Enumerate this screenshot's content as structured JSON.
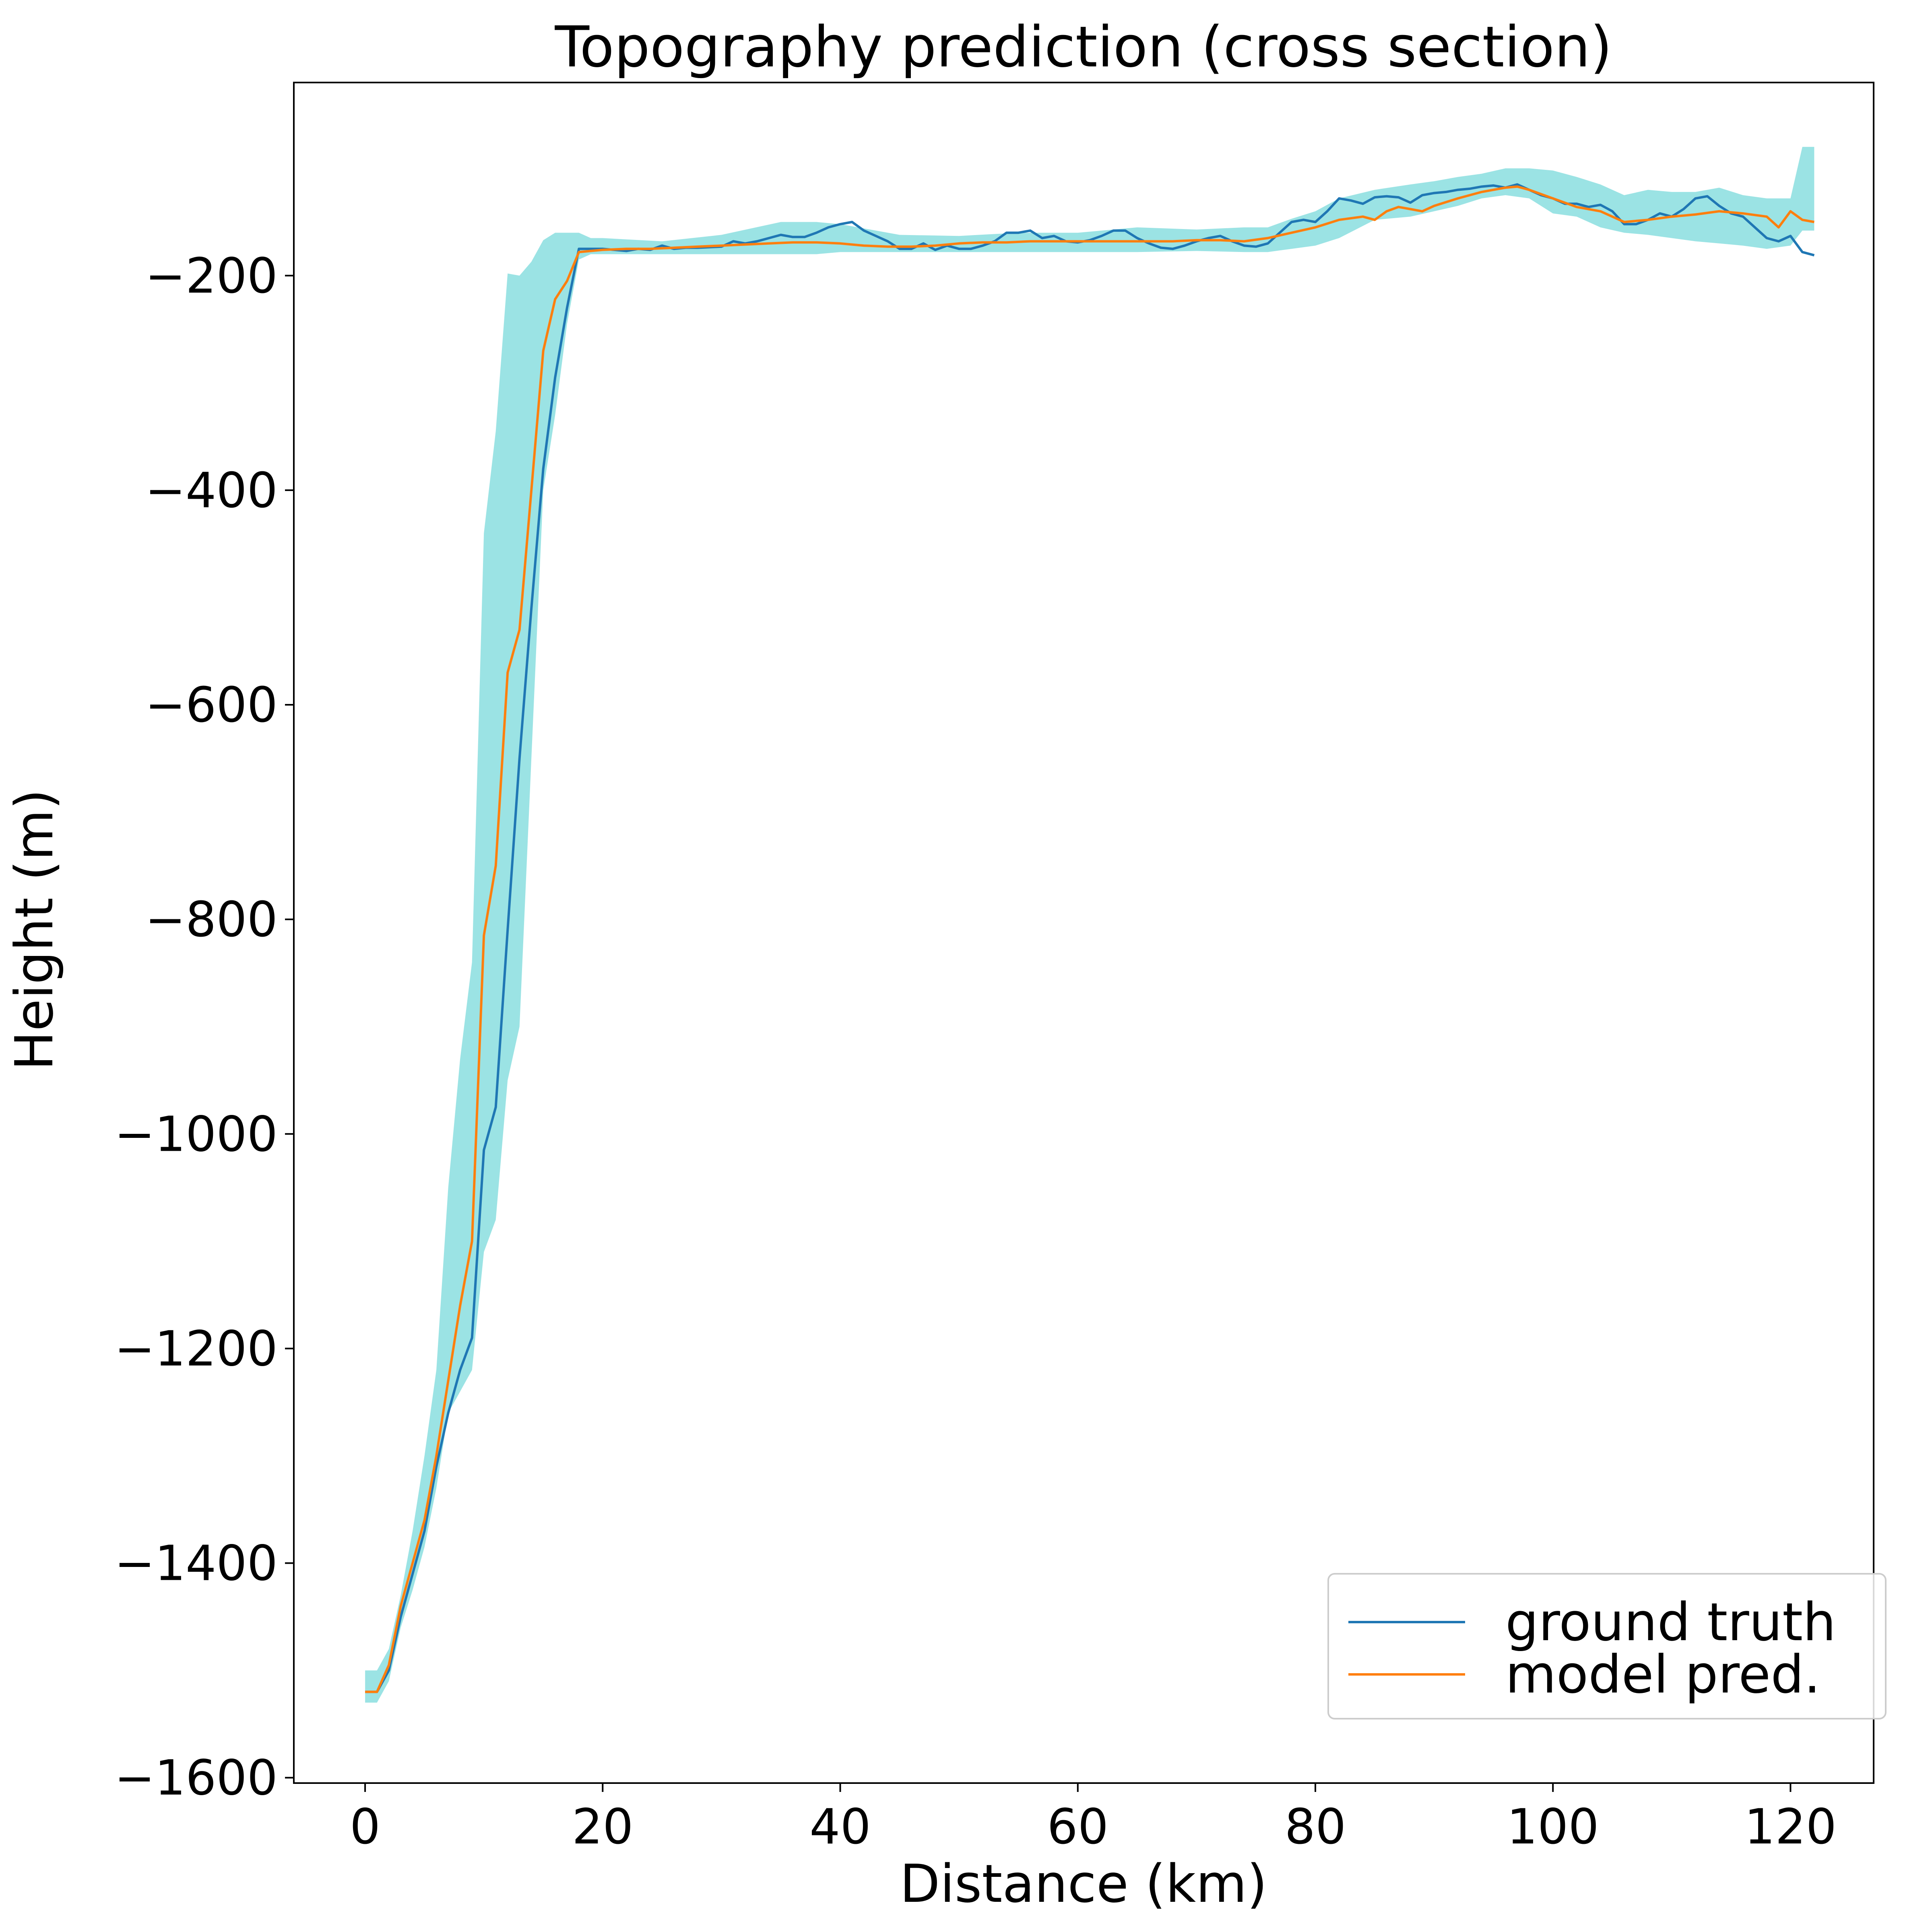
{
  "chart_data": {
    "type": "line",
    "title": "Topography prediction  (cross section)",
    "xlabel": "Distance (km)",
    "ylabel": "Height (m)",
    "xlim": [
      -6,
      127
    ],
    "ylim": [
      -1605,
      -20
    ],
    "xticks": [
      0,
      20,
      40,
      60,
      80,
      100,
      120
    ],
    "yticks": [
      -200,
      -400,
      -600,
      -800,
      -1000,
      -1200,
      -1400,
      -1600
    ],
    "xtick_labels": [
      "0",
      "20",
      "40",
      "60",
      "80",
      "100",
      "120"
    ],
    "ytick_labels": [
      "−200",
      "−400",
      "−600",
      "−800",
      "−1000",
      "−1200",
      "−1400",
      "−1600"
    ],
    "grid": false,
    "legend_position": "bottom-right",
    "series": [
      {
        "name": "ground truth",
        "color": "#1f77b4",
        "x": [
          0,
          1,
          2,
          3,
          4,
          5,
          6,
          7,
          8,
          9,
          10,
          11,
          12,
          13,
          14,
          15,
          16,
          17,
          18,
          20,
          22,
          23,
          24,
          25,
          26,
          27,
          28,
          30,
          31,
          32,
          33,
          34,
          35,
          36,
          37,
          38,
          39,
          40,
          41,
          42,
          43,
          44,
          45,
          46,
          47,
          48,
          49,
          50,
          51,
          52,
          53,
          54,
          55,
          56,
          57,
          58,
          59,
          60,
          61,
          62,
          63,
          64,
          65,
          66,
          67,
          68,
          69,
          70,
          71,
          72,
          73,
          74,
          75,
          76,
          77,
          78,
          79,
          80,
          81,
          82,
          83,
          84,
          85,
          86,
          87,
          88,
          89,
          90,
          91,
          92,
          93,
          94,
          95,
          96,
          97,
          98,
          99,
          100,
          101,
          102,
          103,
          104,
          105,
          106,
          107,
          108,
          109,
          110,
          111,
          112,
          113,
          114,
          115,
          116,
          117,
          118,
          119,
          120,
          121,
          122
        ],
        "y": [
          -1520,
          -1520,
          -1500,
          -1450,
          -1410,
          -1370,
          -1310,
          -1260,
          -1220,
          -1190,
          -1015,
          -975,
          -810,
          -650,
          -510,
          -380,
          -295,
          -230,
          -175,
          -175,
          -177,
          -175,
          -176,
          -172,
          -175,
          -174,
          -174,
          -173,
          -168,
          -170,
          -168,
          -165,
          -162,
          -164,
          -164,
          -160,
          -155,
          -152,
          -150,
          -158,
          -163,
          -168,
          -175,
          -175,
          -170,
          -176,
          -172,
          -175,
          -175,
          -172,
          -168,
          -160,
          -160,
          -158,
          -165,
          -163,
          -168,
          -169,
          -167,
          -163,
          -158,
          -158,
          -165,
          -170,
          -174,
          -175,
          -172,
          -168,
          -165,
          -163,
          -168,
          -172,
          -173,
          -170,
          -160,
          -150,
          -148,
          -150,
          -140,
          -128,
          -130,
          -133,
          -127,
          -126,
          -127,
          -132,
          -125,
          -123,
          -122,
          -120,
          -119,
          -117,
          -116,
          -118,
          -115,
          -120,
          -125,
          -128,
          -133,
          -133,
          -136,
          -134,
          -140,
          -152,
          -152,
          -148,
          -142,
          -145,
          -138,
          -128,
          -126,
          -135,
          -142,
          -145,
          -155,
          -165,
          -168,
          -163,
          -178,
          -181
        ]
      },
      {
        "name": "model pred.",
        "color": "#ff7f0e",
        "x": [
          0,
          1,
          2,
          3,
          4,
          5,
          6,
          7,
          8,
          9,
          10,
          11,
          12,
          13,
          14,
          15,
          16,
          17,
          18,
          20,
          22,
          24,
          26,
          28,
          30,
          32,
          34,
          36,
          38,
          40,
          42,
          44,
          46,
          48,
          50,
          52,
          54,
          56,
          58,
          60,
          62,
          64,
          66,
          68,
          70,
          72,
          74,
          76,
          78,
          80,
          82,
          84,
          85,
          86,
          87,
          88,
          89,
          90,
          92,
          94,
          96,
          97,
          98,
          100,
          102,
          104,
          106,
          108,
          110,
          112,
          114,
          116,
          118,
          119,
          120,
          121,
          122
        ],
        "y": [
          -1520,
          -1520,
          -1495,
          -1440,
          -1400,
          -1360,
          -1300,
          -1230,
          -1160,
          -1100,
          -815,
          -750,
          -570,
          -530,
          -400,
          -270,
          -222,
          -205,
          -178,
          -176,
          -175,
          -175,
          -174,
          -173,
          -172,
          -171,
          -170,
          -169,
          -169,
          -170,
          -172,
          -173,
          -173,
          -172,
          -170,
          -169,
          -169,
          -168,
          -168,
          -168,
          -168,
          -168,
          -168,
          -168,
          -167,
          -167,
          -168,
          -165,
          -160,
          -155,
          -148,
          -145,
          -148,
          -140,
          -136,
          -138,
          -140,
          -135,
          -128,
          -122,
          -118,
          -117,
          -120,
          -128,
          -136,
          -140,
          -150,
          -148,
          -145,
          -143,
          -140,
          -142,
          -145,
          -155,
          -140,
          -148,
          -150
        ]
      }
    ],
    "uncertainty_band": {
      "color": "#9be3e4",
      "x": [
        0,
        1,
        2,
        3,
        4,
        5,
        6,
        7,
        8,
        9,
        10,
        11,
        12,
        13,
        14,
        15,
        16,
        17,
        18,
        19,
        20,
        25,
        30,
        35,
        38,
        40,
        45,
        50,
        55,
        60,
        65,
        70,
        74,
        76,
        78,
        80,
        82,
        85,
        88,
        90,
        92,
        94,
        96,
        98,
        100,
        102,
        104,
        106,
        108,
        110,
        112,
        114,
        116,
        118,
        120,
        121,
        122
      ],
      "upper": [
        -1500,
        -1500,
        -1480,
        -1430,
        -1370,
        -1300,
        -1220,
        -1050,
        -930,
        -840,
        -440,
        -345,
        -198,
        -200,
        -187,
        -167,
        -160,
        -160,
        -160,
        -165,
        -165,
        -168,
        -162,
        -150,
        -150,
        -152,
        -162,
        -163,
        -160,
        -160,
        -155,
        -157,
        -155,
        -155,
        -147,
        -140,
        -128,
        -120,
        -115,
        -112,
        -108,
        -105,
        -100,
        -100,
        -102,
        -108,
        -115,
        -125,
        -120,
        -122,
        -122,
        -118,
        -125,
        -128,
        -128,
        -80,
        -80
      ],
      "lower": [
        -1530,
        -1530,
        -1510,
        -1460,
        -1425,
        -1385,
        -1330,
        -1260,
        -1240,
        -1220,
        -1110,
        -1080,
        -950,
        -900,
        -650,
        -400,
        -330,
        -245,
        -185,
        -180,
        -180,
        -180,
        -180,
        -180,
        -180,
        -178,
        -178,
        -178,
        -178,
        -178,
        -178,
        -177,
        -178,
        -178,
        -175,
        -172,
        -165,
        -148,
        -145,
        -140,
        -135,
        -128,
        -125,
        -128,
        -142,
        -145,
        -155,
        -160,
        -162,
        -165,
        -168,
        -170,
        -172,
        -175,
        -172,
        -158,
        -158
      ]
    }
  }
}
